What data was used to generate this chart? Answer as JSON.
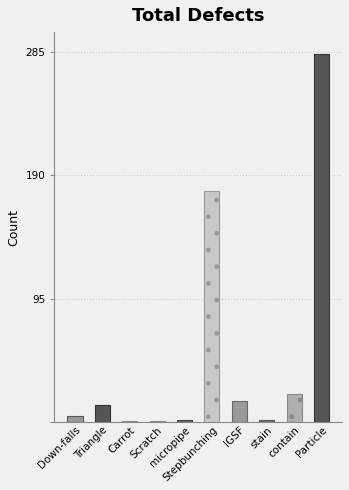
{
  "title": "Total Defects",
  "ylabel": "Count",
  "categories": [
    "Down-falls",
    "Triangle",
    "Carrot",
    "Scratch",
    "micropipe",
    "Stepbunching",
    "IGSF",
    "stain",
    "contain",
    "Particle"
  ],
  "values": [
    5,
    13,
    0.5,
    0.5,
    2,
    178,
    16,
    2,
    22,
    283
  ],
  "bar_colors": [
    "#999999",
    "#555555",
    "#aaaaaa",
    "#aaaaaa",
    "#666666",
    "#c8c8c8",
    "#999999",
    "#777777",
    "#b0b0b0",
    "#555555"
  ],
  "bar_hatches": [
    "",
    "",
    "",
    "",
    "",
    ".",
    "",
    "",
    ".",
    ""
  ],
  "bar_edgecolors": [
    "#555555",
    "#333333",
    "#888888",
    "#888888",
    "#444444",
    "#999999",
    "#666666",
    "#555555",
    "#888888",
    "#333333"
  ],
  "ylim": [
    0,
    300
  ],
  "yticks": [
    0,
    95,
    190,
    285
  ],
  "ytick_labels": [
    "",
    "95",
    "190",
    "285"
  ],
  "title_fontsize": 13,
  "tick_fontsize": 7.5,
  "label_fontsize": 9,
  "grid_color": "#cccccc",
  "grid_linestyle": ":",
  "background_color": "#f0f0f0",
  "figsize": [
    3.49,
    4.9
  ],
  "dpi": 100
}
